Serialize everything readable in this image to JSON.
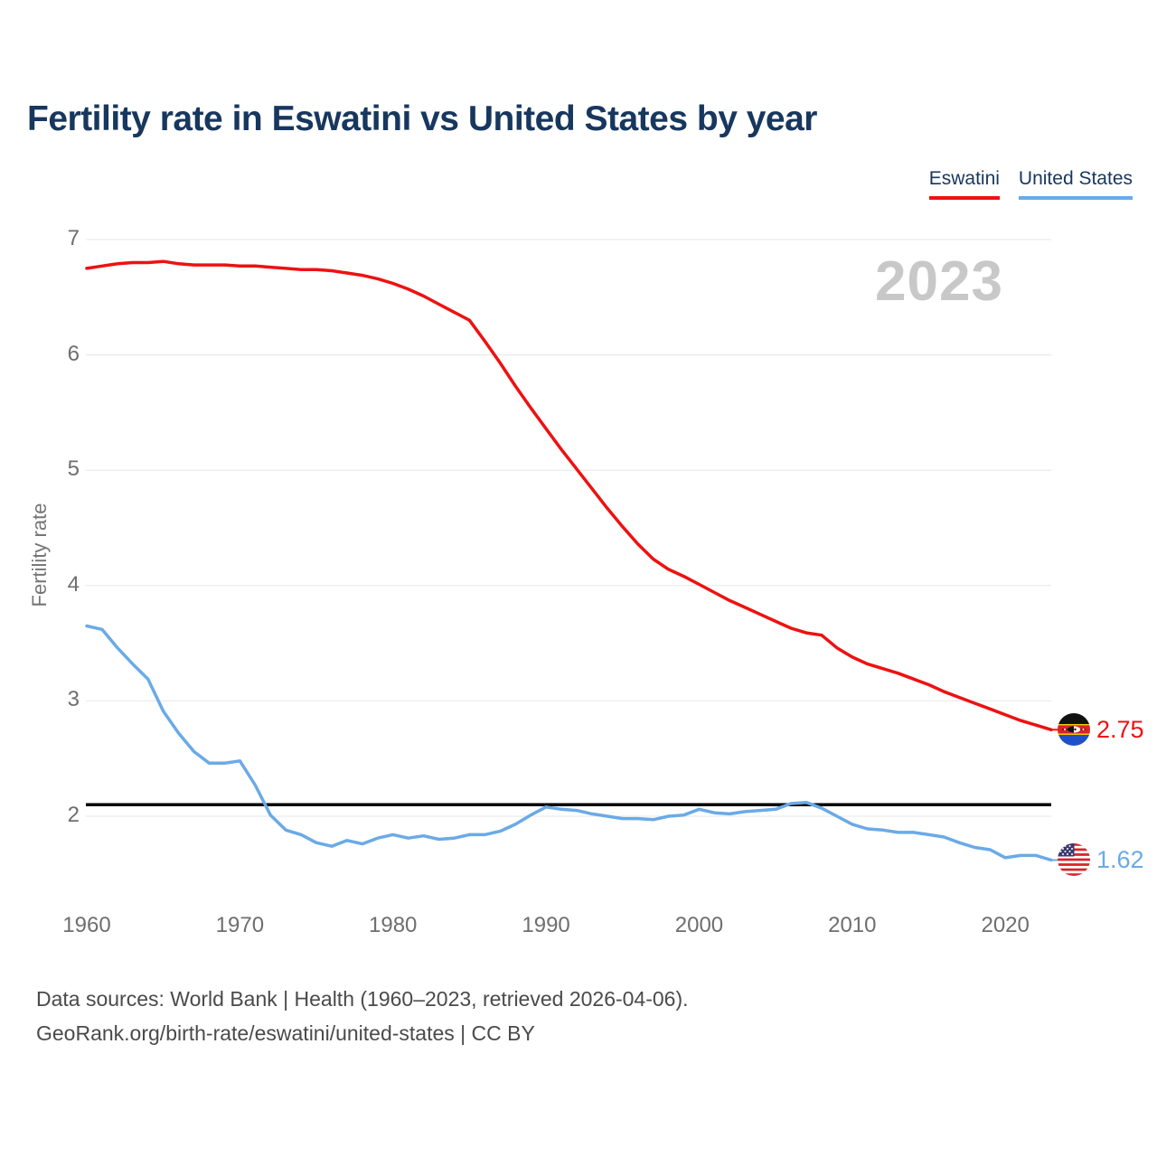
{
  "page": {
    "title": "Fertility rate in Eswatini vs United States by year",
    "watermark": "2023",
    "footer_line1": "Data sources: World Bank | Health (1960–2023, retrieved 2026-04-06).",
    "footer_line2": "GeoRank.org/birth-rate/eswatini/united-states | CC BY"
  },
  "legend": [
    {
      "label": "Eswatini",
      "color": "#ee1111"
    },
    {
      "label": "United States",
      "color": "#6aaae6"
    }
  ],
  "chart_data": {
    "type": "line",
    "title": "Fertility rate in Eswatini vs United States by year",
    "xlabel": "",
    "ylabel": "Fertility rate",
    "xlim": [
      1960,
      2023
    ],
    "ylim": [
      1.45,
      7.05
    ],
    "xticks": [
      1960,
      1970,
      1980,
      1990,
      2000,
      2010,
      2020
    ],
    "yticks": [
      2,
      3,
      4,
      5,
      6,
      7
    ],
    "grid": "horizontal-only",
    "grid_color": "#e7e7e7",
    "legend_position": "top-right",
    "reference_line": {
      "name": "replacement-rate",
      "value": 2.1,
      "color": "#000000"
    },
    "years": [
      1960,
      1961,
      1962,
      1963,
      1964,
      1965,
      1966,
      1967,
      1968,
      1969,
      1970,
      1971,
      1972,
      1973,
      1974,
      1975,
      1976,
      1977,
      1978,
      1979,
      1980,
      1981,
      1982,
      1983,
      1984,
      1985,
      1986,
      1987,
      1988,
      1989,
      1990,
      1991,
      1992,
      1993,
      1994,
      1995,
      1996,
      1997,
      1998,
      1999,
      2000,
      2001,
      2002,
      2003,
      2004,
      2005,
      2006,
      2007,
      2008,
      2009,
      2010,
      2011,
      2012,
      2013,
      2014,
      2015,
      2016,
      2017,
      2018,
      2019,
      2020,
      2021,
      2022,
      2023
    ],
    "series": [
      {
        "name": "Eswatini",
        "color": "#ee1111",
        "end_label": "2.75",
        "end_value": 2.75,
        "values": [
          6.75,
          6.77,
          6.79,
          6.8,
          6.8,
          6.81,
          6.79,
          6.78,
          6.78,
          6.78,
          6.77,
          6.77,
          6.76,
          6.75,
          6.74,
          6.74,
          6.73,
          6.71,
          6.69,
          6.66,
          6.62,
          6.57,
          6.51,
          6.44,
          6.37,
          6.3,
          6.12,
          5.93,
          5.73,
          5.54,
          5.36,
          5.18,
          5.01,
          4.84,
          4.67,
          4.51,
          4.36,
          4.23,
          4.14,
          4.08,
          4.01,
          3.94,
          3.87,
          3.81,
          3.75,
          3.69,
          3.63,
          3.59,
          3.57,
          3.46,
          3.38,
          3.32,
          3.28,
          3.24,
          3.19,
          3.14,
          3.08,
          3.03,
          2.98,
          2.93,
          2.88,
          2.83,
          2.79,
          2.75
        ]
      },
      {
        "name": "United States",
        "color": "#6aaae6",
        "end_label": "1.62",
        "end_value": 1.62,
        "values": [
          3.65,
          3.62,
          3.46,
          3.32,
          3.19,
          2.91,
          2.72,
          2.56,
          2.46,
          2.46,
          2.48,
          2.27,
          2.01,
          1.88,
          1.84,
          1.77,
          1.74,
          1.79,
          1.76,
          1.81,
          1.84,
          1.81,
          1.83,
          1.8,
          1.81,
          1.84,
          1.84,
          1.87,
          1.93,
          2.01,
          2.08,
          2.06,
          2.05,
          2.02,
          2.0,
          1.98,
          1.98,
          1.97,
          2.0,
          2.01,
          2.06,
          2.03,
          2.02,
          2.04,
          2.05,
          2.06,
          2.11,
          2.12,
          2.07,
          2.0,
          1.93,
          1.89,
          1.88,
          1.86,
          1.86,
          1.84,
          1.82,
          1.77,
          1.73,
          1.71,
          1.64,
          1.66,
          1.66,
          1.62
        ]
      }
    ]
  }
}
